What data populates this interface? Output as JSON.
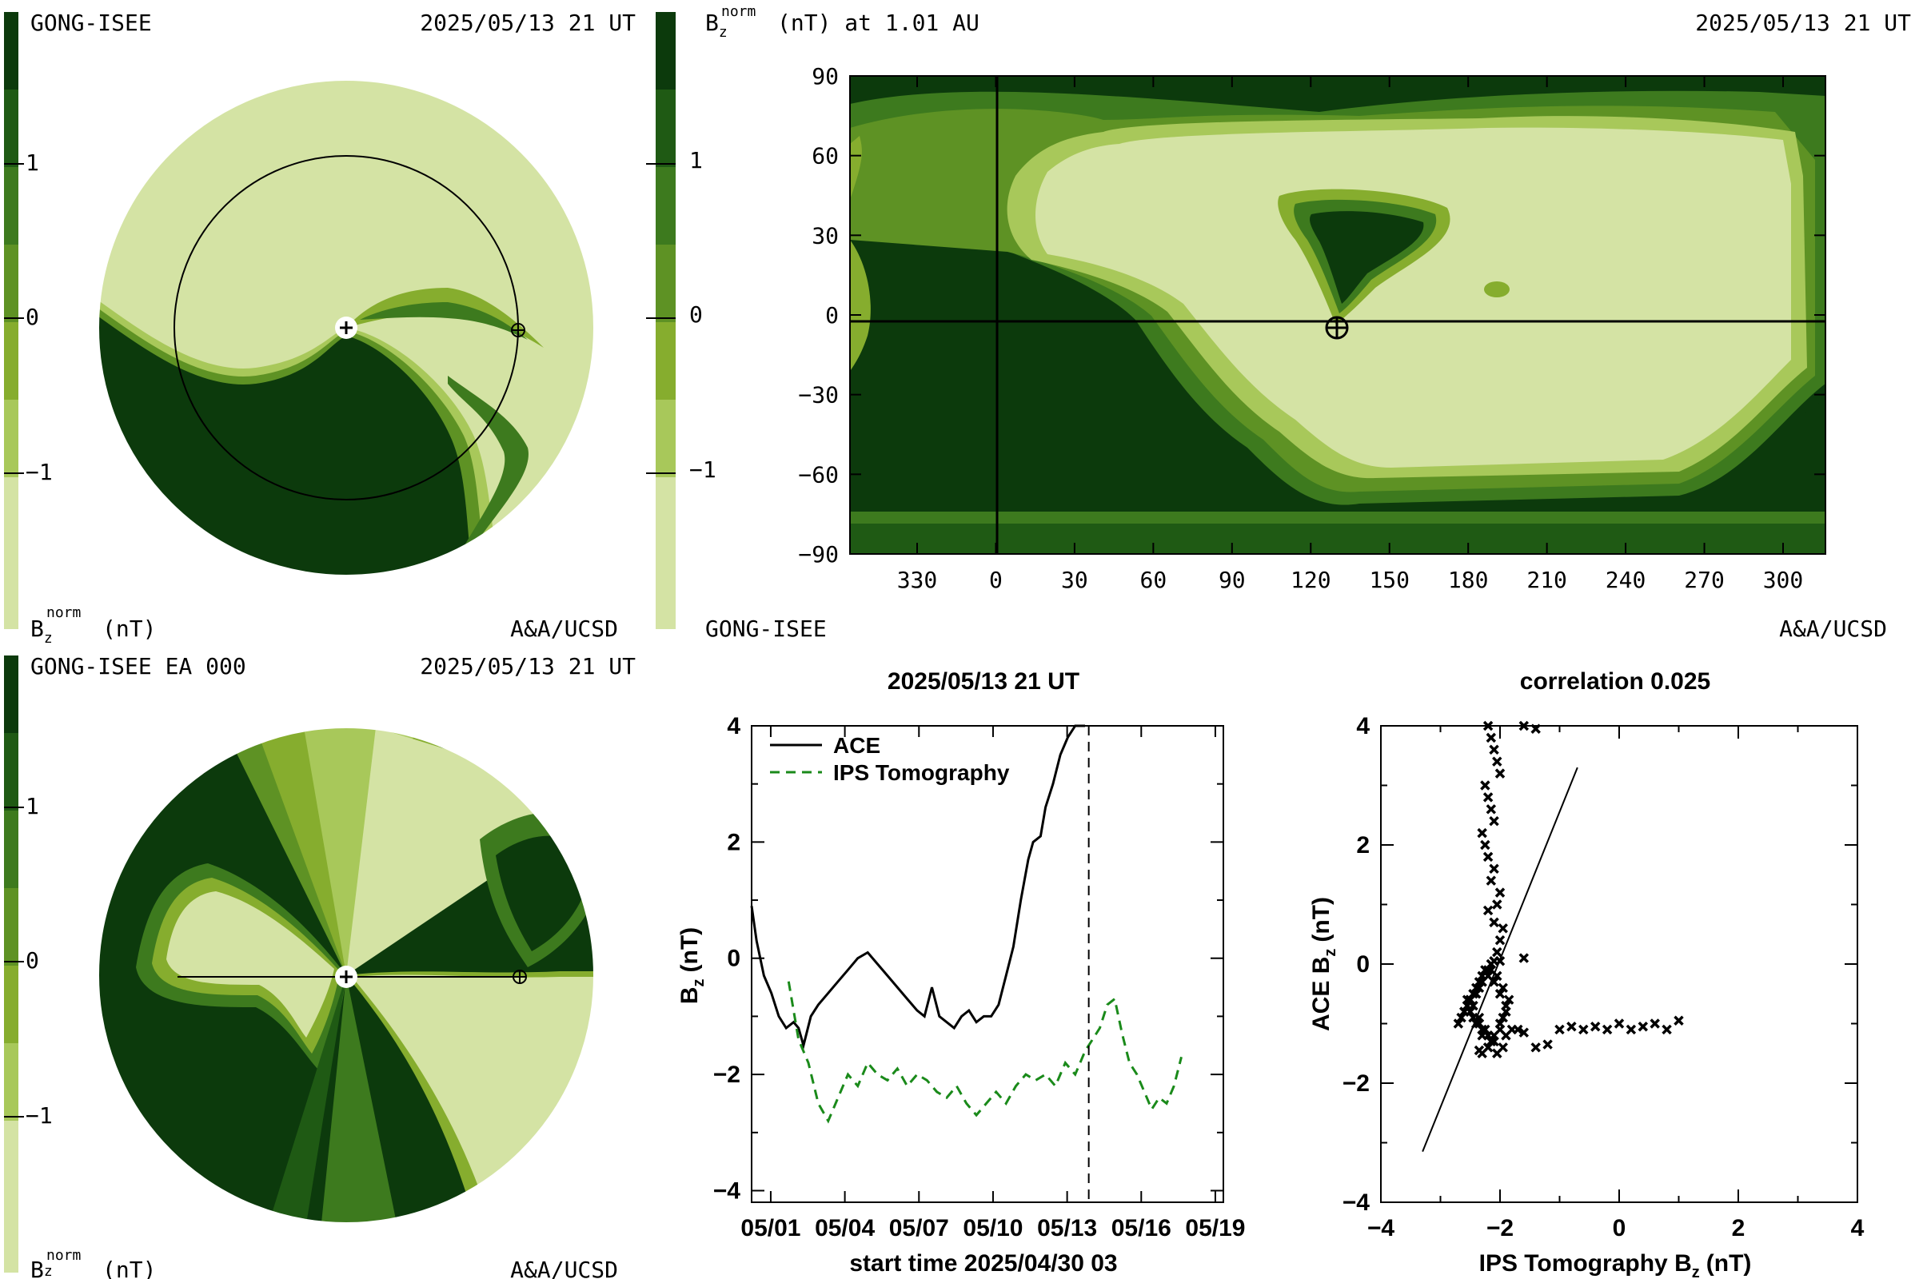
{
  "colors": {
    "dark": "#0c3a0c",
    "c2": "#1f5a14",
    "c3": "#3d7a1e",
    "c4": "#5e9224",
    "c5": "#86ad2e",
    "c6": "#a8c85a",
    "light": "#d4e3a4",
    "ace": "#000000",
    "ips": "#1a8a1a"
  },
  "panel_tl": {
    "title_left": "GONG-ISEE",
    "title_right": "2025/05/13 21 UT",
    "colorbar_ticks": [
      "1",
      "0",
      "−1"
    ],
    "bottom_left_main": "B",
    "bottom_left_sub": "z",
    "bottom_left_sup": "norm",
    "bottom_left_unit": "(nT)",
    "bottom_right": "A&A/UCSD"
  },
  "panel_tr": {
    "title_main": "B",
    "title_sub": "z",
    "title_sup": "norm",
    "title_rest": "(nT) at 1.01 AU",
    "title_right": "2025/05/13 21 UT",
    "colorbar_ticks": [
      "1",
      "0",
      "−1"
    ],
    "bottom_left": "GONG-ISEE",
    "bottom_right": "A&A/UCSD"
  },
  "panel_bl": {
    "title_left": "GONG-ISEE EA 000",
    "title_right": "2025/05/13 21 UT",
    "colorbar_ticks": [
      "1",
      "0",
      "−1"
    ],
    "bottom_left_main": "B",
    "bottom_left_sub": "z",
    "bottom_left_sup": "norm",
    "bottom_left_unit": "(nT)",
    "bottom_right": "A&A/UCSD"
  },
  "chart_data": [
    {
      "type": "heatmap",
      "xticks": [
        "330",
        "0",
        "30",
        "60",
        "90",
        "120",
        "150",
        "180",
        "210",
        "240",
        "270",
        "300"
      ],
      "yticks": [
        "90",
        "60",
        "30",
        "0",
        "−30",
        "−60",
        "−90"
      ],
      "ylim": [
        -90,
        90
      ],
      "earth_marker": {
        "lon": 125,
        "lat": -2
      },
      "reference_lines": {
        "lon": 0,
        "lat": 0
      }
    },
    {
      "type": "line",
      "title": "2025/05/13 21 UT",
      "xlabel": "start time 2025/04/30 03",
      "ylabel_main": "B",
      "ylabel_sub": "z",
      "ylabel_unit": "(nT)",
      "xticks": [
        "05/01",
        "05/04",
        "05/07",
        "05/10",
        "05/13",
        "05/16",
        "05/19"
      ],
      "xtick_days": [
        0.875,
        3.875,
        6.875,
        9.875,
        12.875,
        15.875,
        18.875
      ],
      "xlim": [
        0.1,
        19.2
      ],
      "yticks": [
        "4",
        "2",
        "0",
        "−2",
        "−4"
      ],
      "ylim": [
        -4.2,
        4
      ],
      "current_time_day": 13.75,
      "series": [
        {
          "name": "ACE",
          "style": "solid",
          "x": [
            0.1,
            0.3,
            0.6,
            0.9,
            1.2,
            1.5,
            1.8,
            2.0,
            2.2,
            2.5,
            2.8,
            3.2,
            3.6,
            4.0,
            4.4,
            4.8,
            5.2,
            5.6,
            6.0,
            6.4,
            6.8,
            7.1,
            7.4,
            7.7,
            8.0,
            8.3,
            8.6,
            8.9,
            9.2,
            9.5,
            9.8,
            10.1,
            10.4,
            10.7,
            11.0,
            11.3,
            11.5,
            11.8,
            12.0,
            12.3,
            12.6,
            12.9,
            13.2,
            13.4,
            13.6
          ],
          "y": [
            0.9,
            0.3,
            -0.3,
            -0.6,
            -1.0,
            -1.2,
            -1.1,
            -1.2,
            -1.5,
            -1.0,
            -0.8,
            -0.6,
            -0.4,
            -0.2,
            0.0,
            0.1,
            -0.1,
            -0.3,
            -0.5,
            -0.7,
            -0.9,
            -1.0,
            -0.5,
            -1.0,
            -1.1,
            -1.2,
            -1.0,
            -0.9,
            -1.1,
            -1.0,
            -1.0,
            -0.8,
            -0.3,
            0.2,
            1.0,
            1.7,
            2.0,
            2.1,
            2.6,
            3.0,
            3.5,
            3.8,
            4.2,
            4.5,
            4.6
          ]
        },
        {
          "name": "IPS Tomography",
          "style": "dashed",
          "x": [
            1.6,
            2.0,
            2.4,
            2.8,
            3.2,
            3.6,
            4.0,
            4.4,
            4.8,
            5.2,
            5.6,
            6.0,
            6.4,
            6.8,
            7.2,
            7.6,
            8.0,
            8.4,
            8.8,
            9.2,
            9.6,
            10.0,
            10.4,
            10.8,
            11.2,
            11.6,
            12.0,
            12.4,
            12.8,
            13.2,
            13.6,
            13.9,
            14.2,
            14.5,
            14.8,
            15.1,
            15.4,
            15.7,
            16.0,
            16.3,
            16.6,
            16.9,
            17.2,
            17.5
          ],
          "y": [
            -0.4,
            -1.4,
            -1.8,
            -2.5,
            -2.8,
            -2.4,
            -2.0,
            -2.2,
            -1.8,
            -2.0,
            -2.1,
            -1.9,
            -2.2,
            -2.0,
            -2.1,
            -2.3,
            -2.4,
            -2.2,
            -2.5,
            -2.7,
            -2.5,
            -2.3,
            -2.5,
            -2.2,
            -2.0,
            -2.1,
            -2.0,
            -2.2,
            -1.8,
            -2.0,
            -1.6,
            -1.4,
            -1.2,
            -0.8,
            -0.7,
            -1.3,
            -1.8,
            -2.0,
            -2.3,
            -2.6,
            -2.4,
            -2.5,
            -2.2,
            -1.7
          ]
        }
      ]
    },
    {
      "type": "scatter",
      "title": "correlation 0.025",
      "xlabel_main": "IPS Tomography B",
      "xlabel_sub": "z",
      "xlabel_unit": "(nT)",
      "ylabel_main": "ACE B",
      "ylabel_sub": "z",
      "ylabel_unit": "(nT)",
      "xticks": [
        "−4",
        "−2",
        "0",
        "2",
        "4"
      ],
      "yticks": [
        "4",
        "2",
        "0",
        "−2",
        "−4"
      ],
      "xlim": [
        -4,
        4
      ],
      "ylim": [
        -4,
        4
      ],
      "fit_line": {
        "x": [
          -3.3,
          -0.7
        ],
        "y": [
          -3.15,
          3.3
        ]
      },
      "points": {
        "x": [
          -2.2,
          -2.15,
          -2.1,
          -2.05,
          -2.0,
          -1.6,
          -1.4,
          -2.25,
          -2.2,
          -2.15,
          -2.1,
          -2.3,
          -2.25,
          -2.2,
          -2.1,
          -2.15,
          -2.0,
          -2.05,
          -2.2,
          -2.1,
          -1.95,
          -2.0,
          -2.05,
          -2.1,
          -2.15,
          -2.2,
          -2.3,
          -2.35,
          -2.4,
          -2.5,
          -2.55,
          -2.6,
          -2.45,
          -2.35,
          -2.3,
          -2.2,
          -2.1,
          -2.0,
          -1.95,
          -1.9,
          -2.0,
          -2.1,
          -2.2,
          -2.3,
          -2.4,
          -2.5,
          -2.6,
          -2.7,
          -2.65,
          -2.55,
          -2.45,
          -2.35,
          -2.25,
          -2.15,
          -2.05,
          -1.95,
          -1.85,
          -1.9,
          -2.0,
          -2.1,
          -2.2,
          -2.3,
          -2.4,
          -2.5,
          -2.55,
          -2.45,
          -2.35,
          -2.25,
          -2.15,
          -2.05,
          -1.95,
          -1.9,
          -1.8,
          -1.7,
          -1.6,
          -1.4,
          -1.2,
          -1.0,
          -0.8,
          -0.6,
          -0.4,
          -0.2,
          0.0,
          0.2,
          0.4,
          0.6,
          0.8,
          1.0,
          -2.2,
          -2.3,
          -2.35,
          -2.0,
          -1.6
        ],
        "y": [
          4.0,
          3.8,
          3.6,
          3.4,
          3.2,
          4.0,
          3.95,
          3.0,
          2.8,
          2.6,
          2.4,
          2.2,
          2.0,
          1.8,
          1.6,
          1.4,
          1.2,
          1.0,
          0.9,
          0.7,
          0.6,
          0.4,
          0.2,
          0.05,
          -0.1,
          -0.2,
          -0.3,
          -0.4,
          -0.5,
          -0.6,
          -0.7,
          -0.8,
          -0.9,
          -1.0,
          -1.1,
          -1.2,
          -1.3,
          -1.1,
          -0.9,
          -0.7,
          -0.5,
          -0.3,
          -0.1,
          -0.2,
          -0.4,
          -0.6,
          -0.8,
          -1.0,
          -0.9,
          -0.7,
          -0.5,
          -0.3,
          -0.1,
          0.0,
          -0.2,
          -0.4,
          -0.6,
          -0.8,
          -1.0,
          -1.2,
          -1.4,
          -1.2,
          -1.0,
          -0.8,
          -0.6,
          -0.7,
          -0.9,
          -1.1,
          -1.3,
          -1.5,
          -1.4,
          -1.2,
          -1.1,
          -1.1,
          -1.15,
          -1.4,
          -1.35,
          -1.1,
          -1.05,
          -1.1,
          -1.05,
          -1.1,
          -1.0,
          -1.1,
          -1.05,
          -1.0,
          -1.1,
          -0.95,
          -1.4,
          -1.5,
          -1.45,
          0.05,
          0.1
        ]
      }
    }
  ]
}
